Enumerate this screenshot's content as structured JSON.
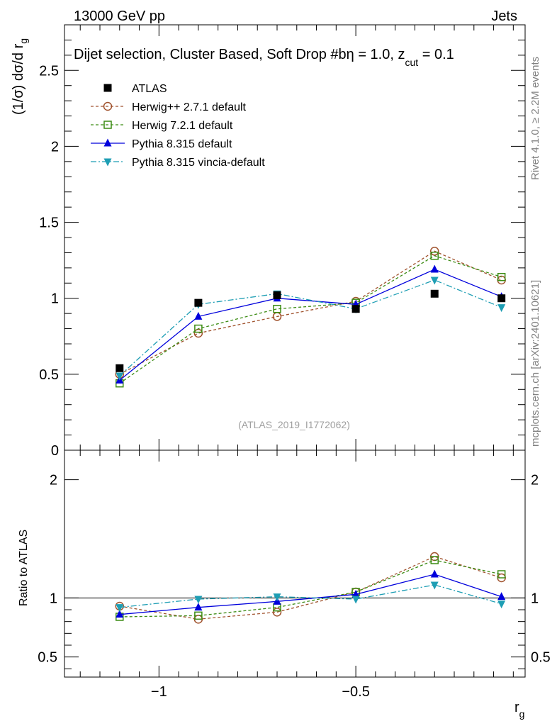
{
  "chart_data": {
    "type": "line",
    "top_left_label": "13000 GeV pp",
    "top_right_label": "Jets",
    "title_parts": {
      "main": "Dijet selection, Cluster Based, Soft Drop #b",
      "mid": "η = 1.0, z",
      "sub": "cut",
      "tail": " = 0.1"
    },
    "ylabel_main_parts": {
      "main": "(1/σ) dσ/d r",
      "sub": "g"
    },
    "ylabel_ratio": "Ratio to ATLAS",
    "xlabel_parts": {
      "main": "r",
      "sub": "g"
    },
    "side_label_1": "Rivet 4.1.0, ≥ 2.2M events",
    "side_label_2": "mcplots.cern.ch [arXiv:2401.10621]",
    "reference_label": "(ATLAS_2019_I1772062)",
    "xlim": [
      -1.24,
      -0.07
    ],
    "ylim_main": [
      0,
      2.8
    ],
    "ylim_ratio": [
      0.33,
      2.25
    ],
    "x_ticks": [
      -1,
      -0.5
    ],
    "x_tick_labels": [
      "−1",
      "−0.5"
    ],
    "y_ticks_main": [
      0,
      0.5,
      1,
      1.5,
      2,
      2.5
    ],
    "y_tick_labels_main": [
      "0",
      "0.5",
      "1",
      "1.5",
      "2",
      "2.5"
    ],
    "y_ticks_ratio": [
      0.5,
      1,
      2
    ],
    "y_tick_labels_ratio": [
      "0.5",
      "1",
      "2"
    ],
    "x": [
      -1.1,
      -0.9,
      -0.7,
      -0.5,
      -0.3,
      -0.13
    ],
    "series": [
      {
        "name": "ATLAS",
        "color": "#000000",
        "marker": "square-filled",
        "line": "none",
        "values": [
          0.54,
          0.97,
          1.02,
          0.93,
          1.03,
          1.0
        ],
        "ratio": [
          1.0,
          1.0,
          1.0,
          1.0,
          1.0,
          1.0
        ]
      },
      {
        "name": "Herwig++ 2.7.1 default",
        "color": "#a0522d",
        "marker": "circle-open",
        "line": "dashed",
        "values": [
          0.5,
          0.77,
          0.88,
          0.98,
          1.31,
          1.12
        ],
        "ratio": [
          0.93,
          0.82,
          0.88,
          1.05,
          1.35,
          1.17
        ]
      },
      {
        "name": "Herwig 7.2.1 default",
        "color": "#3c8c14",
        "marker": "square-open",
        "line": "dashed",
        "values": [
          0.44,
          0.8,
          0.93,
          0.97,
          1.28,
          1.14
        ],
        "ratio": [
          0.84,
          0.85,
          0.92,
          1.05,
          1.32,
          1.2
        ]
      },
      {
        "name": "Pythia 8.315 default",
        "color": "#0000dc",
        "marker": "triangle-up",
        "line": "solid",
        "values": [
          0.46,
          0.88,
          1.0,
          0.96,
          1.19,
          1.01
        ],
        "ratio": [
          0.86,
          0.92,
          0.97,
          1.03,
          1.2,
          1.01
        ]
      },
      {
        "name": "Pythia 8.315 vincia-default",
        "color": "#1e9eb4",
        "marker": "triangle-down",
        "line": "dashdot",
        "values": [
          0.49,
          0.96,
          1.03,
          0.93,
          1.12,
          0.94
        ],
        "ratio": [
          0.92,
          0.99,
          1.01,
          0.99,
          1.11,
          0.95
        ]
      }
    ]
  }
}
